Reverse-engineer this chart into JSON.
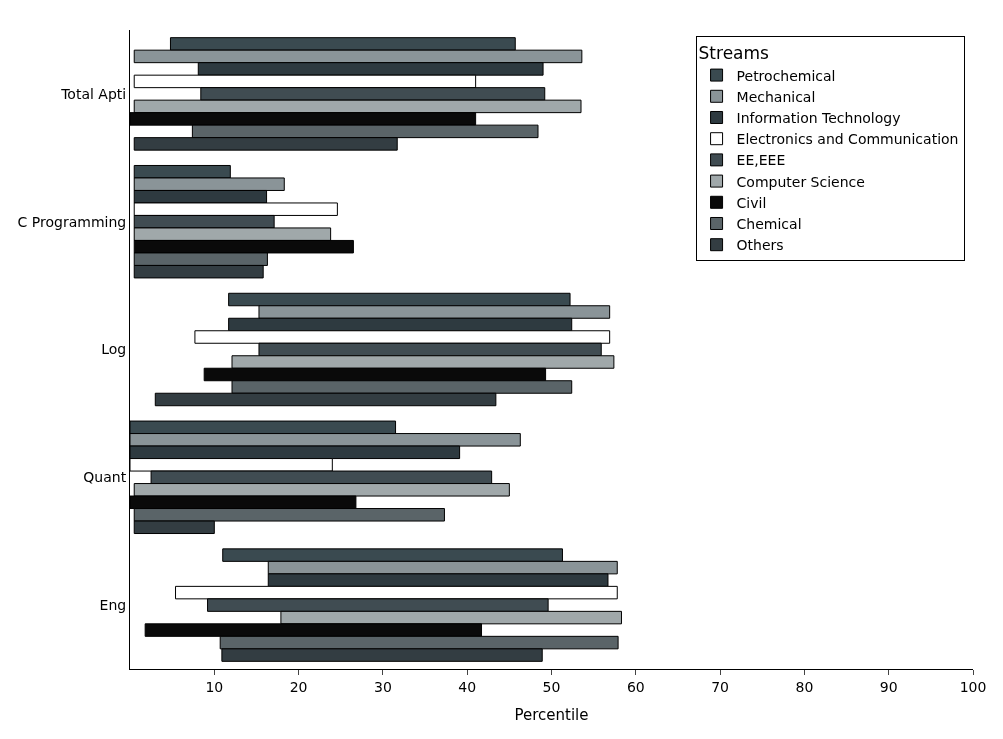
{
  "chart_data": {
    "type": "bar",
    "orientation": "horizontal",
    "xlabel": "Percentile",
    "legend_title": "Streams",
    "legend": "top right",
    "categories": [
      "Total Apti",
      "C Programming",
      "Log",
      "Quant",
      "Eng"
    ],
    "xlim": [
      0,
      100
    ],
    "xticks": [
      10,
      20,
      30,
      40,
      50,
      60,
      70,
      80,
      90,
      100
    ],
    "series": [
      {
        "name": "Petrochemical",
        "color": "#3a4a50",
        "base": [
          4.8,
          0.5,
          11.7,
          0,
          11
        ],
        "values": [
          40.9,
          11.4,
          40.5,
          31.5,
          40.3
        ]
      },
      {
        "name": "Mechanical",
        "color": "#8a9498",
        "base": [
          0.5,
          0.5,
          15.3,
          0,
          16.4
        ],
        "values": [
          53.1,
          17.8,
          41.6,
          46.3,
          41.4
        ]
      },
      {
        "name": "Information Technology",
        "color": "#2e3a40",
        "base": [
          8.1,
          0.5,
          11.7,
          0,
          16.4
        ],
        "values": [
          40.9,
          15.7,
          40.7,
          39.1,
          40.3
        ]
      },
      {
        "name": "Electronics and Communication",
        "color": "#ffffff",
        "base": [
          0.5,
          0.5,
          7.7,
          0,
          5.4
        ],
        "values": [
          40.5,
          24.1,
          49.2,
          24,
          52.4
        ]
      },
      {
        "name": "EE,EEE",
        "color": "#404c52",
        "base": [
          8.4,
          0.5,
          15.3,
          2.5,
          9.2
        ],
        "values": [
          40.8,
          16.6,
          40.6,
          40.4,
          40.4
        ]
      },
      {
        "name": "Computer Science",
        "color": "#a0a8aa",
        "base": [
          0.5,
          0.5,
          12.1,
          0.5,
          17.9
        ],
        "values": [
          53.0,
          23.3,
          45.3,
          44.5,
          40.4
        ]
      },
      {
        "name": "Civil",
        "color": "#0a0a0a",
        "base": [
          0,
          0.5,
          8.8,
          0,
          1.8
        ],
        "values": [
          41.0,
          26.0,
          40.5,
          26.8,
          39.9
        ]
      },
      {
        "name": "Chemical",
        "color": "#5a6468",
        "base": [
          7.4,
          0.5,
          12.1,
          0.5,
          10.7
        ],
        "values": [
          41.0,
          15.8,
          40.3,
          36.8,
          47.2
        ]
      },
      {
        "name": "Others",
        "color": "#333d42",
        "base": [
          0.5,
          0.5,
          3.0,
          0.5,
          10.9
        ],
        "values": [
          31.2,
          15.3,
          40.4,
          9.5,
          38.0
        ]
      }
    ]
  }
}
